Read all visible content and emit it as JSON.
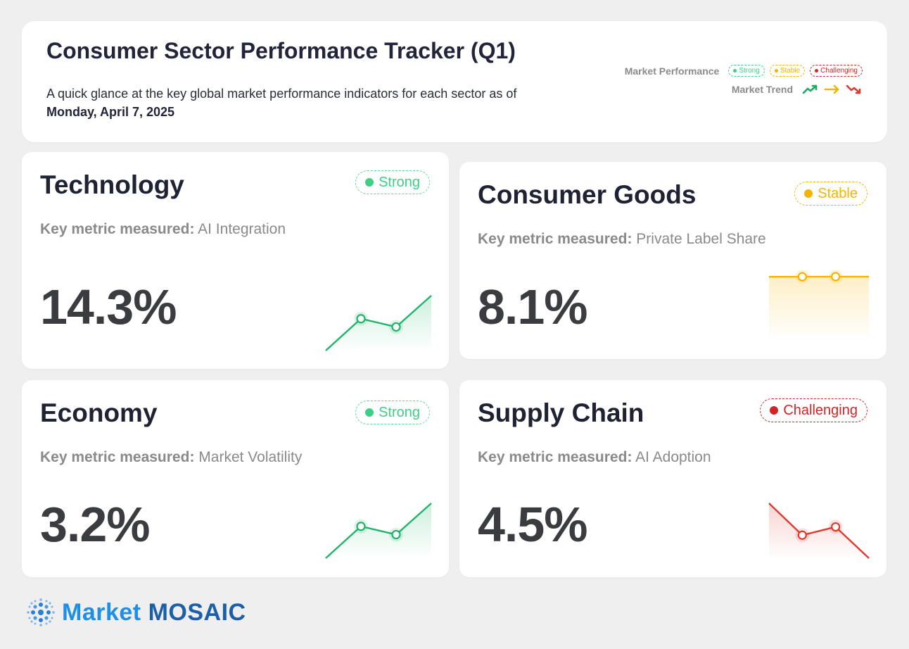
{
  "header": {
    "title": "Consumer Sector Performance Tracker (Q1)",
    "subtitle": "A quick glance at the key global market performance indicators for each sector as of",
    "date": "Monday, April 7, 2025",
    "legend": {
      "performance_label": "Market Performance",
      "strong": "Strong",
      "stable": "Stable",
      "challenging": "Challenging",
      "trend_label": "Market Trend",
      "trend_icons": [
        "trend-up-icon",
        "trend-flat-icon",
        "trend-down-icon"
      ]
    }
  },
  "metric_prefix": "Key metric measured:",
  "sectors": [
    {
      "name": "Technology",
      "status": "Strong",
      "status_color": "#3ccf85",
      "metric": "AI Integration",
      "value": "14.3%",
      "trend": "up",
      "sparkline": [
        0,
        0.58,
        0.43,
        1
      ]
    },
    {
      "name": "Consumer Goods",
      "status": "Stable",
      "status_color": "#f5b400",
      "metric": "Private Label Share",
      "value": "8.1%",
      "trend": "flat",
      "sparkline": [
        0.5,
        0.5,
        0.51,
        0.51
      ]
    },
    {
      "name": "Economy",
      "status": "Strong",
      "status_color": "#3ccf85",
      "metric": "Market Volatility",
      "value": "3.2%",
      "trend": "up",
      "sparkline": [
        0,
        0.58,
        0.43,
        1
      ]
    },
    {
      "name": "Supply Chain",
      "status": "Challenging",
      "status_color": "#d42424",
      "metric": "AI Adoption",
      "value": "4.5%",
      "trend": "down",
      "sparkline": [
        1,
        0.42,
        0.57,
        0
      ]
    }
  ],
  "brand": {
    "name_part1": "Market",
    "name_part2": "MOSAIC",
    "icon": "mosaic-logo-icon"
  }
}
